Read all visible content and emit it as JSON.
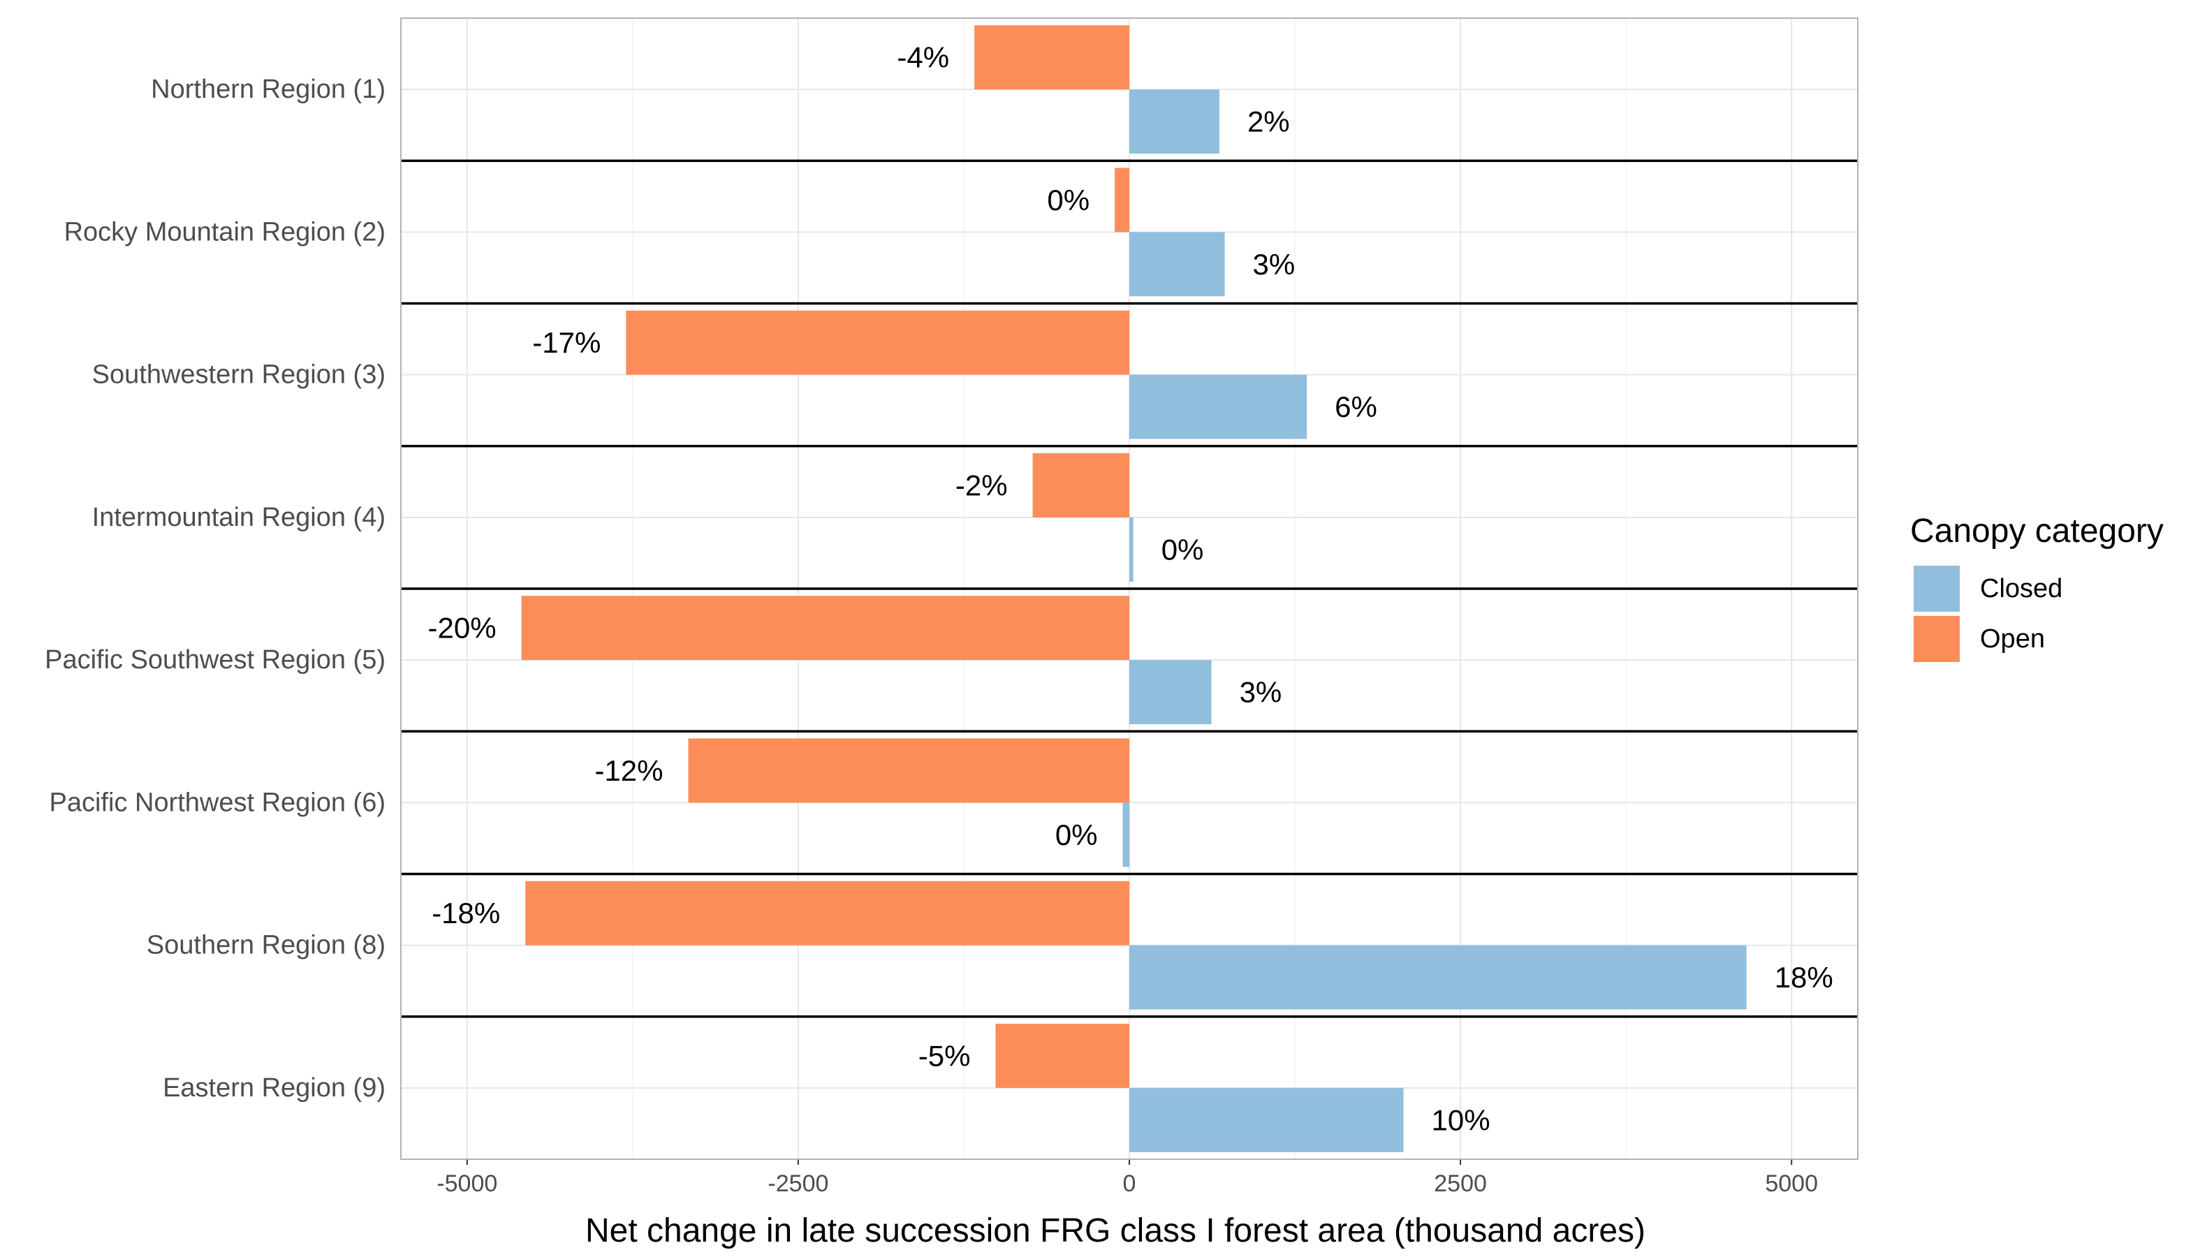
{
  "chart_data": {
    "type": "bar",
    "orientation": "horizontal",
    "xlabel": "Net change in late succession FRG class I forest area (thousand acres)",
    "ylabel": "",
    "xlim": [
      -5500,
      5500
    ],
    "x_ticks": [
      -5000,
      -2500,
      0,
      2500,
      5000
    ],
    "grid": true,
    "legend": {
      "title": "Canopy category",
      "position": "right"
    },
    "categories": [
      "Northern Region (1)",
      "Rocky Mountain Region (2)",
      "Southwestern Region (3)",
      "Intermountain Region (4)",
      "Pacific Southwest Region (5)",
      "Pacific Northwest Region (6)",
      "Southern Region (8)",
      "Eastern Region (9)"
    ],
    "series": [
      {
        "name": "Closed",
        "color": "#92bedd",
        "values": [
          680,
          720,
          1340,
          30,
          620,
          -50,
          4660,
          2070
        ],
        "labels": [
          "2%",
          "3%",
          "6%",
          "0%",
          "3%",
          "0%",
          "18%",
          "10%"
        ]
      },
      {
        "name": "Open",
        "color": "#fc8d59",
        "values": [
          -1170,
          -110,
          -3800,
          -730,
          -4590,
          -3330,
          -4560,
          -1010
        ],
        "labels": [
          "-4%",
          "0%",
          "-17%",
          "-2%",
          "-20%",
          "-12%",
          "-18%",
          "-5%"
        ]
      }
    ]
  }
}
